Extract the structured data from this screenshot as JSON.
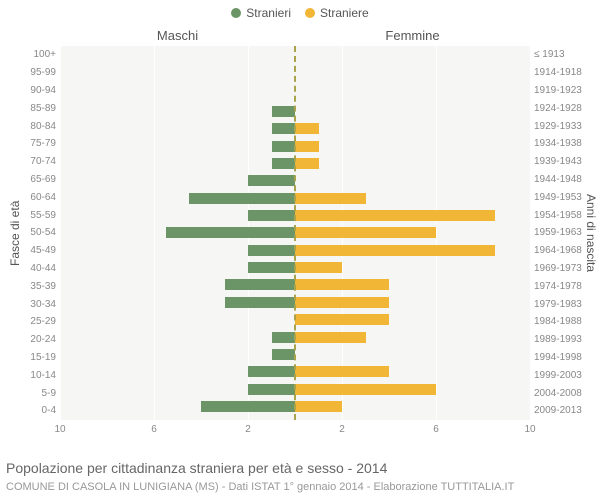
{
  "legend": {
    "male": "Stranieri",
    "female": "Straniere"
  },
  "column_titles": {
    "left": "Maschi",
    "right": "Femmine"
  },
  "axes": {
    "left_title": "Fasce di età",
    "right_title": "Anni di nascita",
    "x_domain": 10,
    "x_ticks": [
      10,
      6,
      2,
      2,
      6,
      10
    ],
    "x_tick_positions_pct": [
      0,
      20,
      40,
      60,
      80,
      100
    ]
  },
  "colors": {
    "male": "#6b9566",
    "female": "#f2b636",
    "baseline": "#a9a44c",
    "plot_bg": "#f6f6f4",
    "grid": "#ffffff",
    "bg": "#ffffff"
  },
  "caption": "Popolazione per cittadinanza straniera per età e sesso - 2014",
  "caption_sub": "COMUNE DI CASOLA IN LUNIGIANA (MS) - Dati ISTAT 1° gennaio 2014 - Elaborazione TUTTITALIA.IT",
  "rows": [
    {
      "age": "100+",
      "year": "≤ 1913",
      "m": 0,
      "f": 0
    },
    {
      "age": "95-99",
      "year": "1914-1918",
      "m": 0,
      "f": 0
    },
    {
      "age": "90-94",
      "year": "1919-1923",
      "m": 0,
      "f": 0
    },
    {
      "age": "85-89",
      "year": "1924-1928",
      "m": 1,
      "f": 0
    },
    {
      "age": "80-84",
      "year": "1929-1933",
      "m": 1,
      "f": 1
    },
    {
      "age": "75-79",
      "year": "1934-1938",
      "m": 1,
      "f": 1
    },
    {
      "age": "70-74",
      "year": "1939-1943",
      "m": 1,
      "f": 1
    },
    {
      "age": "65-69",
      "year": "1944-1948",
      "m": 2,
      "f": 0
    },
    {
      "age": "60-64",
      "year": "1949-1953",
      "m": 4.5,
      "f": 3
    },
    {
      "age": "55-59",
      "year": "1954-1958",
      "m": 2,
      "f": 8.5
    },
    {
      "age": "50-54",
      "year": "1959-1963",
      "m": 5.5,
      "f": 6
    },
    {
      "age": "45-49",
      "year": "1964-1968",
      "m": 2,
      "f": 8.5
    },
    {
      "age": "40-44",
      "year": "1969-1973",
      "m": 2,
      "f": 2
    },
    {
      "age": "35-39",
      "year": "1974-1978",
      "m": 3,
      "f": 4
    },
    {
      "age": "30-34",
      "year": "1979-1983",
      "m": 3,
      "f": 4
    },
    {
      "age": "25-29",
      "year": "1984-1988",
      "m": 0,
      "f": 4
    },
    {
      "age": "20-24",
      "year": "1989-1993",
      "m": 1,
      "f": 3
    },
    {
      "age": "15-19",
      "year": "1994-1998",
      "m": 1,
      "f": 0
    },
    {
      "age": "10-14",
      "year": "1999-2003",
      "m": 2,
      "f": 4
    },
    {
      "age": "5-9",
      "year": "2004-2008",
      "m": 2,
      "f": 6
    },
    {
      "age": "0-4",
      "year": "2009-2013",
      "m": 4,
      "f": 2
    }
  ]
}
